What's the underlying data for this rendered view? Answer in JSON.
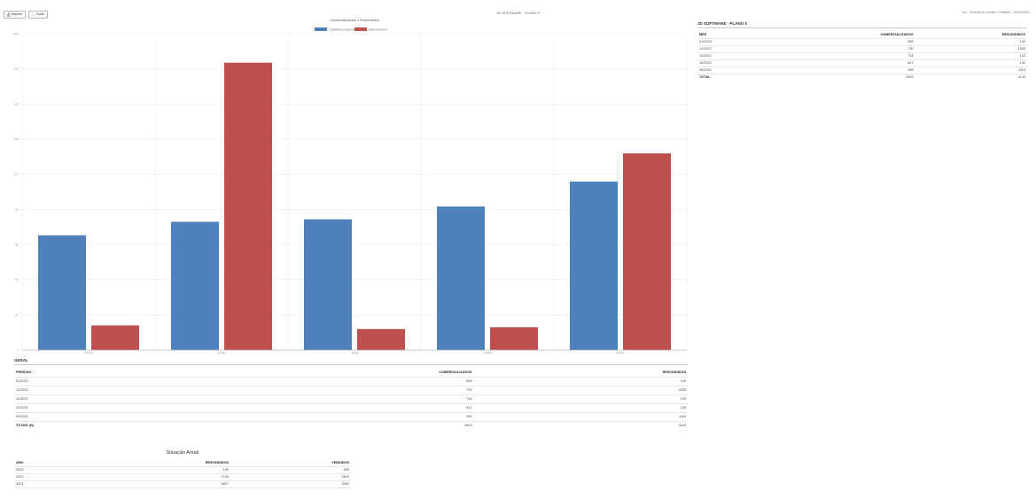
{
  "toolbar": {
    "print_label": "Imprimir",
    "back_label": "Voltar"
  },
  "header": {
    "title": "JD SOFTWARE - PLANO 5",
    "subtitle": "Inc - Sistema de Gestão | Software - 01/01/2023"
  },
  "chart_data": {
    "type": "bar",
    "title": "Comercializados x Rescindidos",
    "categories": [
      "01/2023",
      "12/2022",
      "11/2022",
      "10/2022",
      "09/2022"
    ],
    "series": [
      {
        "name": "COMERCIALIZADOS",
        "values": [
          653,
          730,
          744,
          817,
          959
        ],
        "color": "#4f81bd"
      },
      {
        "name": "RESCINDIDOS",
        "values": [
          140,
          1635,
          120,
          130,
          1119
        ],
        "color": "#c0504d"
      }
    ],
    "ylim": [
      0,
      1800
    ],
    "yticks": [
      0,
      200,
      400,
      600,
      800,
      1000,
      1200,
      1400,
      1600,
      1800
    ],
    "grid": true,
    "legend": "top-center"
  },
  "side_table": {
    "title": "JD SOFTWARE - PLANO 5",
    "headers": [
      "MÊS",
      "COMERCIALIZADOS",
      "RESCINDIDOS"
    ],
    "rows": [
      [
        "01/2023",
        "653",
        "140"
      ],
      [
        "12/2022",
        "730",
        "1635"
      ],
      [
        "11/2022",
        "744",
        "120"
      ],
      [
        "10/2022",
        "817",
        "130"
      ],
      [
        "09/2022",
        "959",
        "1119"
      ]
    ],
    "total": [
      "TOTAL",
      "3903",
      "3144"
    ]
  },
  "geral_table": {
    "title": "GERAL",
    "headers": [
      "PERÍODO",
      "COMERCIALIZADOS",
      "RESCINDIDOS"
    ],
    "rows": [
      [
        "01/2023",
        "653",
        "140"
      ],
      [
        "12/2022",
        "730",
        "1635"
      ],
      [
        "11/2022",
        "744",
        "120"
      ],
      [
        "10/2022",
        "817",
        "130"
      ],
      [
        "09/2022",
        "959",
        "1119"
      ]
    ],
    "total": [
      "TOTAIS (H)",
      "3903",
      "3144"
    ]
  },
  "annual_table": {
    "title": "Situação Anual",
    "headers": [
      "ANO",
      "RESCINDIDOS",
      "VENDIDOS"
    ],
    "rows": [
      [
        "2023",
        "140",
        "653"
      ],
      [
        "2022",
        "7123",
        "9515"
      ],
      [
        "2021",
        "6017",
        "3291"
      ]
    ]
  }
}
